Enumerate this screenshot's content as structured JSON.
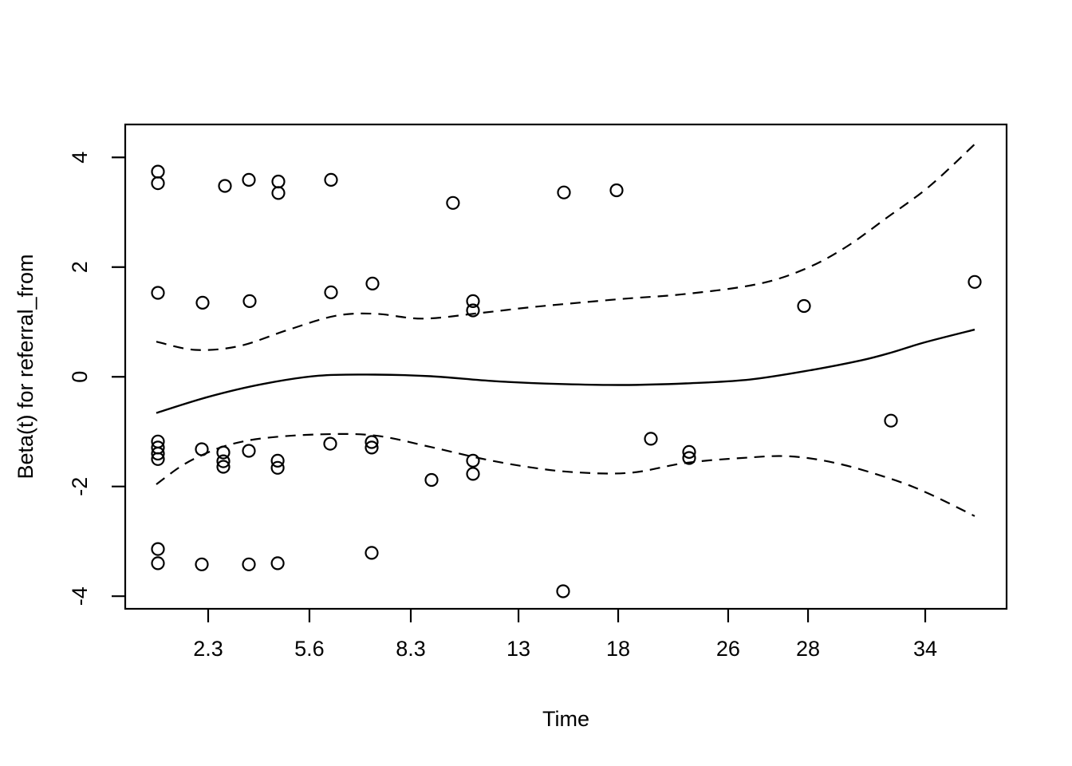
{
  "page": {
    "background": "#ffffff",
    "foreground": "#000000"
  },
  "chart_data": {
    "type": "scatter",
    "title": "",
    "xlabel": "Time",
    "ylabel": "Beta(t) for referral_from",
    "legend": null,
    "grid": false,
    "x_axis": {
      "label": "Time",
      "scale": "nonlinear event-time axis (ticks unevenly spaced)",
      "ticks": [
        {
          "label": "2.3",
          "f": 0.0941
        },
        {
          "label": "5.6",
          "f": 0.209
        },
        {
          "label": "8.3",
          "f": 0.324
        },
        {
          "label": "13",
          "f": 0.4462
        },
        {
          "label": "18",
          "f": 0.5593
        },
        {
          "label": "26",
          "f": 0.6841
        },
        {
          "label": "28",
          "f": 0.7747
        },
        {
          "label": "34",
          "f": 0.9077
        }
      ]
    },
    "y_axis": {
      "label": "Beta(t) for referral_from",
      "ticks": [
        4,
        2,
        0,
        -2,
        -4
      ],
      "ylim": [
        -4.23,
        4.6
      ]
    },
    "points": [
      {
        "f": 0.0371,
        "t": 0.7,
        "y": 3.74
      },
      {
        "f": 0.0371,
        "t": 0.7,
        "y": 3.53
      },
      {
        "f": 0.1131,
        "t": 2.8,
        "y": 3.48
      },
      {
        "f": 0.1403,
        "t": 3.6,
        "y": 3.59
      },
      {
        "f": 0.1738,
        "t": 4.6,
        "y": 3.56
      },
      {
        "f": 0.1738,
        "t": 4.6,
        "y": 3.35
      },
      {
        "f": 0.2335,
        "t": 6.2,
        "y": 3.59
      },
      {
        "f": 0.3719,
        "t": 10.1,
        "y": 3.17
      },
      {
        "f": 0.4977,
        "t": 15.3,
        "y": 3.36
      },
      {
        "f": 0.5575,
        "t": 18.0,
        "y": 3.4
      },
      {
        "f": 0.0371,
        "t": 0.7,
        "y": 1.53
      },
      {
        "f": 0.0878,
        "t": 2.1,
        "y": 1.35
      },
      {
        "f": 0.1412,
        "t": 3.7,
        "y": 1.38
      },
      {
        "f": 0.2335,
        "t": 6.2,
        "y": 1.54
      },
      {
        "f": 0.2805,
        "t": 7.3,
        "y": 1.7
      },
      {
        "f": 0.3946,
        "t": 11.0,
        "y": 1.38
      },
      {
        "f": 0.3946,
        "t": 11.0,
        "y": 1.21
      },
      {
        "f": 0.7701,
        "t": 27.9,
        "y": 1.29
      },
      {
        "f": 0.9638,
        "t": 36.5,
        "y": 1.73
      },
      {
        "f": 0.0371,
        "t": 0.7,
        "y": -1.18
      },
      {
        "f": 0.0371,
        "t": 0.7,
        "y": -1.29
      },
      {
        "f": 0.0371,
        "t": 0.7,
        "y": -1.4
      },
      {
        "f": 0.0371,
        "t": 0.7,
        "y": -1.5
      },
      {
        "f": 0.0869,
        "t": 2.1,
        "y": -1.32
      },
      {
        "f": 0.1113,
        "t": 2.8,
        "y": -1.38
      },
      {
        "f": 0.1113,
        "t": 2.8,
        "y": -1.54
      },
      {
        "f": 0.1113,
        "t": 2.8,
        "y": -1.64
      },
      {
        "f": 0.1403,
        "t": 3.6,
        "y": -1.35
      },
      {
        "f": 0.1729,
        "t": 4.6,
        "y": -1.53
      },
      {
        "f": 0.1729,
        "t": 4.6,
        "y": -1.66
      },
      {
        "f": 0.2326,
        "t": 6.1,
        "y": -1.22
      },
      {
        "f": 0.2796,
        "t": 7.2,
        "y": -1.19
      },
      {
        "f": 0.2796,
        "t": 7.2,
        "y": -1.29
      },
      {
        "f": 0.3475,
        "t": 9.2,
        "y": -1.88
      },
      {
        "f": 0.3946,
        "t": 11.0,
        "y": -1.53
      },
      {
        "f": 0.3946,
        "t": 11.0,
        "y": -1.77
      },
      {
        "f": 0.5964,
        "t": 20.4,
        "y": -1.13
      },
      {
        "f": 0.6398,
        "t": 23.2,
        "y": -1.37
      },
      {
        "f": 0.6398,
        "t": 23.2,
        "y": -1.48
      },
      {
        "f": 0.8688,
        "t": 32.2,
        "y": -0.8
      },
      {
        "f": 0.0371,
        "t": 0.7,
        "y": -3.14
      },
      {
        "f": 0.0371,
        "t": 0.7,
        "y": -3.4
      },
      {
        "f": 0.0869,
        "t": 2.1,
        "y": -3.42
      },
      {
        "f": 0.1403,
        "t": 3.6,
        "y": -3.42
      },
      {
        "f": 0.1729,
        "t": 4.6,
        "y": -3.4
      },
      {
        "f": 0.2796,
        "t": 7.2,
        "y": -3.21
      },
      {
        "f": 0.4968,
        "t": 15.2,
        "y": -3.91
      }
    ],
    "lines": {
      "fit": {
        "name": "beta(t) smooth estimate",
        "style": "solid",
        "points": [
          [
            0.0353,
            -0.66
          ],
          [
            0.0932,
            -0.37
          ],
          [
            0.1566,
            -0.13
          ],
          [
            0.2199,
            0.02
          ],
          [
            0.2832,
            0.04
          ],
          [
            0.3466,
            0.01
          ],
          [
            0.419,
            -0.08
          ],
          [
            0.4914,
            -0.13
          ],
          [
            0.5638,
            -0.15
          ],
          [
            0.6362,
            -0.12
          ],
          [
            0.7086,
            -0.05
          ],
          [
            0.781,
            0.13
          ],
          [
            0.8353,
            0.3
          ],
          [
            0.8688,
            0.44
          ],
          [
            0.9077,
            0.63
          ],
          [
            0.9638,
            0.86
          ]
        ]
      },
      "upper_ci": {
        "name": "upper confidence band",
        "style": "dashed",
        "points": [
          [
            0.0353,
            0.64
          ],
          [
            0.0796,
            0.49
          ],
          [
            0.1294,
            0.56
          ],
          [
            0.1837,
            0.85
          ],
          [
            0.238,
            1.11
          ],
          [
            0.2832,
            1.15
          ],
          [
            0.3375,
            1.06
          ],
          [
            0.4009,
            1.16
          ],
          [
            0.4552,
            1.26
          ],
          [
            0.5005,
            1.33
          ],
          [
            0.5638,
            1.42
          ],
          [
            0.6362,
            1.51
          ],
          [
            0.7176,
            1.69
          ],
          [
            0.7719,
            1.97
          ],
          [
            0.8172,
            2.36
          ],
          [
            0.8624,
            2.88
          ],
          [
            0.9122,
            3.47
          ],
          [
            0.9638,
            4.24
          ]
        ]
      },
      "lower_ci": {
        "name": "lower confidence band",
        "style": "dashed",
        "points": [
          [
            0.0353,
            -1.96
          ],
          [
            0.0615,
            -1.65
          ],
          [
            0.0842,
            -1.45
          ],
          [
            0.1158,
            -1.25
          ],
          [
            0.1566,
            -1.12
          ],
          [
            0.2199,
            -1.05
          ],
          [
            0.2832,
            -1.07
          ],
          [
            0.3466,
            -1.28
          ],
          [
            0.4009,
            -1.48
          ],
          [
            0.4552,
            -1.64
          ],
          [
            0.5095,
            -1.74
          ],
          [
            0.5729,
            -1.75
          ],
          [
            0.6362,
            -1.57
          ],
          [
            0.6995,
            -1.48
          ],
          [
            0.7538,
            -1.45
          ],
          [
            0.8081,
            -1.58
          ],
          [
            0.8688,
            -1.86
          ],
          [
            0.9104,
            -2.12
          ],
          [
            0.9638,
            -2.54
          ]
        ]
      }
    },
    "colors": {
      "stroke": "#000000",
      "background": "#ffffff"
    }
  }
}
